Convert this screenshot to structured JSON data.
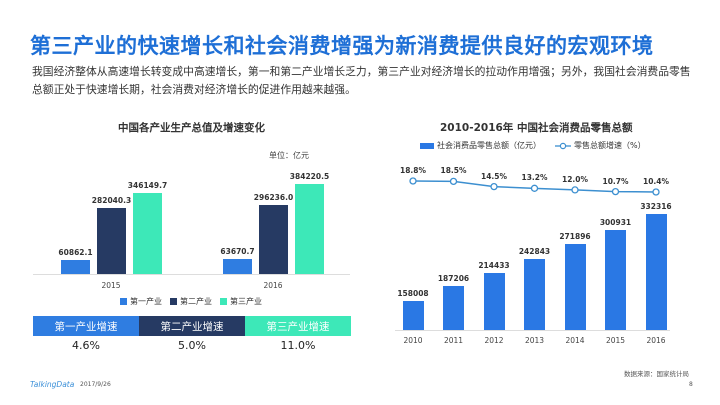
{
  "header": {
    "title": "第三产业的快速增长和社会消费增强为新消费提供良好的宏观环境",
    "paragraph": "我国经济整体从高速增长转变成中高速增长，第一和第二产业增长乏力，第三产业对经济增长的拉动作用增强；另外，我国社会消费品零售总额正处于快速增长期，社会消费对经济增长的促进作用越来越强。"
  },
  "colors": {
    "title": "#1e6fd6",
    "primary": "#2f7de1",
    "secondary": "#263a63",
    "tertiary": "#3de8b8",
    "retail_bar": "#2a78e4",
    "line": "#3c8fd0"
  },
  "chart_data": [
    {
      "type": "bar",
      "title": "中国各产业生产总值及增速变化",
      "unit": "单位：亿元",
      "categories": [
        "2015",
        "2016"
      ],
      "series": [
        {
          "name": "第一产业",
          "values": [
            60862.1,
            63670.7
          ],
          "labels": [
            "60862.1",
            "63670.7"
          ]
        },
        {
          "name": "第二产业",
          "values": [
            282040.3,
            296236.0
          ],
          "labels": [
            "282040.3",
            "296236.0"
          ]
        },
        {
          "name": "第三产业",
          "values": [
            346149.7,
            384220.5
          ],
          "labels": [
            "346149.7",
            "384220.5"
          ]
        }
      ],
      "legend": "bottom",
      "grid": false
    },
    {
      "type": "bar+line",
      "title": "2010-2016年 中国社会消费品零售总额",
      "categories": [
        "2010",
        "2011",
        "2012",
        "2013",
        "2014",
        "2015",
        "2016"
      ],
      "series": [
        {
          "name": "社会消费品零售总额（亿元）",
          "type": "bar",
          "values": [
            158008,
            187206,
            214433,
            242843,
            271896,
            300931,
            332316
          ]
        },
        {
          "name": "零售总额增速（%）",
          "type": "line",
          "values": [
            18.8,
            18.5,
            14.5,
            13.2,
            12.0,
            10.7,
            10.4
          ],
          "labels": [
            "18.8%",
            "18.5%",
            "14.5%",
            "13.2%",
            "12.0%",
            "10.7%",
            "10.4%"
          ]
        }
      ],
      "legend": "top",
      "grid": false
    }
  ],
  "growth_table": {
    "headers": [
      "第一产业增速",
      "第二产业增速",
      "第三产业增速"
    ],
    "values": [
      "4.6%",
      "5.0%",
      "11.0%"
    ]
  },
  "footer": {
    "source": "数据来源：国家统计局",
    "logo": "TalkingData",
    "date": "2017/9/26",
    "page": "8"
  }
}
